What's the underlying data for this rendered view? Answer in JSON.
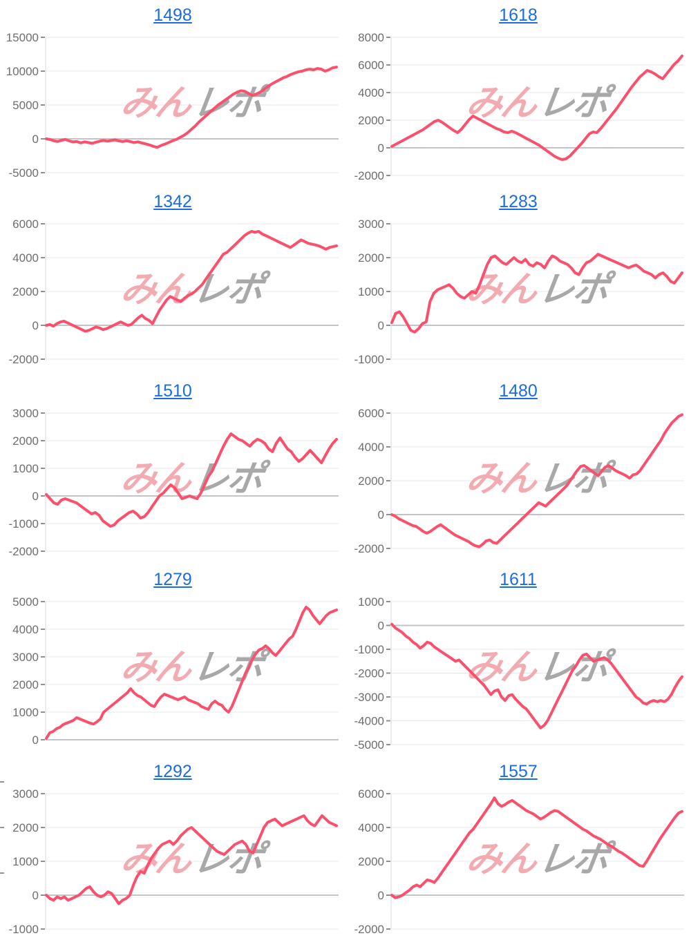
{
  "page": {
    "background": "#ffffff"
  },
  "watermark": {
    "pink_text": "みん",
    "gray_text": "レポ",
    "pink_color": "#f1abb1",
    "gray_color": "#a8a8a8"
  },
  "style": {
    "line_color": "#fa506c",
    "grid_color": "#e8e8e8",
    "zero_line_color": "#c4c4c4",
    "tick_color": "#8f8f8f",
    "axis_label_color": "#6e6e6e",
    "axis_border_color": "#d9d9d9",
    "title_color": "#1b6ce2"
  },
  "left_edge_ticks_y": [
    1131,
    1197,
    1263
  ],
  "chart_data": [
    {
      "type": "line",
      "title": "1498",
      "ylabel": "",
      "xlabel": "",
      "grid": true,
      "y_ticks": [
        15000,
        10000,
        5000,
        0,
        -5000
      ],
      "ylim": [
        -5000,
        15000
      ],
      "values": [
        0,
        -100,
        -300,
        -400,
        -200,
        -100,
        -300,
        -450,
        -400,
        -600,
        -450,
        -550,
        -650,
        -500,
        -350,
        -250,
        -350,
        -250,
        -150,
        -300,
        -400,
        -300,
        -400,
        -550,
        -450,
        -600,
        -750,
        -900,
        -1100,
        -1250,
        -1000,
        -800,
        -550,
        -300,
        -100,
        200,
        500,
        900,
        1400,
        1900,
        2500,
        3000,
        3500,
        4000,
        4500,
        5000,
        5400,
        5800,
        6200,
        6600,
        6900,
        7100,
        7000,
        6700,
        6400,
        6600,
        6900,
        7300,
        7700,
        8100,
        8400,
        8700,
        9000,
        9200,
        9500,
        9700,
        9900,
        10000,
        10200,
        10300,
        10200,
        10400,
        10300,
        10000,
        10200,
        10500,
        10600
      ]
    },
    {
      "type": "line",
      "title": "1618",
      "ylabel": "",
      "xlabel": "",
      "grid": true,
      "y_ticks": [
        8000,
        6000,
        4000,
        2000,
        0,
        -2000
      ],
      "ylim": [
        -2000,
        8000
      ],
      "values": [
        100,
        250,
        400,
        550,
        700,
        850,
        1000,
        1150,
        1300,
        1500,
        1700,
        1900,
        2000,
        1850,
        1650,
        1450,
        1250,
        1100,
        1350,
        1700,
        2050,
        2300,
        2150,
        2000,
        1850,
        1700,
        1550,
        1400,
        1300,
        1150,
        1100,
        1200,
        1100,
        950,
        800,
        650,
        500,
        350,
        200,
        0,
        -200,
        -400,
        -600,
        -750,
        -850,
        -800,
        -600,
        -300,
        0,
        300,
        650,
        1000,
        1150,
        1100,
        1400,
        1750,
        2100,
        2450,
        2800,
        3200,
        3600,
        4000,
        4400,
        4750,
        5100,
        5350,
        5600,
        5500,
        5350,
        5150,
        5000,
        5350,
        5700,
        6050,
        6300,
        6650
      ]
    },
    {
      "type": "line",
      "title": "1342",
      "ylabel": "",
      "xlabel": "",
      "grid": true,
      "y_ticks": [
        6000,
        4000,
        2000,
        0,
        -2000
      ],
      "ylim": [
        -2000,
        6000
      ],
      "values": [
        0,
        50,
        -50,
        100,
        200,
        250,
        150,
        50,
        -50,
        -150,
        -250,
        -350,
        -300,
        -200,
        -100,
        -150,
        -250,
        -200,
        -100,
        0,
        100,
        200,
        100,
        0,
        50,
        250,
        450,
        600,
        400,
        300,
        100,
        500,
        900,
        1200,
        1500,
        1700,
        1600,
        1500,
        1400,
        1600,
        1750,
        1850,
        2000,
        2200,
        2400,
        2700,
        3000,
        3300,
        3600,
        3900,
        4200,
        4300,
        4500,
        4700,
        4900,
        5100,
        5300,
        5450,
        5550,
        5500,
        5550,
        5400,
        5300,
        5200,
        5100,
        5000,
        4900,
        4800,
        4700,
        4600,
        4750,
        4900,
        5050,
        4950,
        4850,
        4800,
        4750,
        4700,
        4600,
        4500,
        4600,
        4650,
        4700
      ]
    },
    {
      "type": "line",
      "title": "1283",
      "ylabel": "",
      "xlabel": "",
      "grid": true,
      "y_ticks": [
        3000,
        2000,
        1000,
        0,
        -1000
      ],
      "ylim": [
        -1000,
        3000
      ],
      "values": [
        80,
        350,
        400,
        250,
        50,
        -150,
        -200,
        -100,
        50,
        100,
        700,
        950,
        1050,
        1100,
        1150,
        1200,
        1100,
        950,
        850,
        800,
        900,
        1000,
        950,
        1200,
        1500,
        1800,
        2000,
        2050,
        1950,
        1850,
        1800,
        1900,
        2000,
        1900,
        1850,
        1950,
        1800,
        1750,
        1850,
        1800,
        1700,
        1900,
        2050,
        2000,
        1900,
        1850,
        1800,
        1700,
        1550,
        1500,
        1700,
        1850,
        1900,
        2000,
        2100,
        2050,
        2000,
        1950,
        1900,
        1850,
        1800,
        1750,
        1700,
        1750,
        1780,
        1700,
        1600,
        1550,
        1500,
        1400,
        1500,
        1550,
        1450,
        1300,
        1250,
        1400,
        1550
      ]
    },
    {
      "type": "line",
      "title": "1510",
      "ylabel": "",
      "xlabel": "",
      "grid": true,
      "y_ticks": [
        3000,
        2000,
        1000,
        0,
        -1000,
        -2000
      ],
      "ylim": [
        -2000,
        3000
      ],
      "values": [
        50,
        -100,
        -250,
        -300,
        -150,
        -100,
        -150,
        -200,
        -250,
        -350,
        -450,
        -550,
        -650,
        -600,
        -700,
        -900,
        -1000,
        -1100,
        -1050,
        -900,
        -800,
        -700,
        -600,
        -550,
        -650,
        -800,
        -750,
        -600,
        -400,
        -200,
        0,
        100,
        250,
        400,
        300,
        100,
        -100,
        -50,
        0,
        -50,
        -100,
        100,
        400,
        700,
        900,
        1200,
        1500,
        1800,
        2050,
        2250,
        2150,
        2050,
        2000,
        1900,
        1800,
        1950,
        2050,
        2000,
        1900,
        1700,
        1600,
        1900,
        2100,
        1900,
        1700,
        1600,
        1400,
        1250,
        1350,
        1500,
        1650,
        1500,
        1350,
        1200,
        1450,
        1700,
        1900,
        2050
      ]
    },
    {
      "type": "line",
      "title": "1480",
      "ylabel": "",
      "xlabel": "",
      "grid": true,
      "y_ticks": [
        6000,
        4000,
        2000,
        0,
        -2000
      ],
      "ylim": [
        -2000,
        6000
      ],
      "values": [
        0,
        -100,
        -250,
        -350,
        -450,
        -550,
        -650,
        -700,
        -850,
        -1000,
        -1100,
        -1000,
        -850,
        -700,
        -600,
        -750,
        -900,
        -1050,
        -1200,
        -1300,
        -1400,
        -1500,
        -1600,
        -1750,
        -1850,
        -1900,
        -1750,
        -1550,
        -1500,
        -1650,
        -1700,
        -1500,
        -1300,
        -1100,
        -900,
        -700,
        -500,
        -300,
        -100,
        100,
        300,
        500,
        700,
        600,
        500,
        700,
        900,
        1100,
        1300,
        1500,
        1700,
        2000,
        2300,
        2600,
        2850,
        2900,
        2750,
        2600,
        2450,
        2300,
        2550,
        2800,
        2900,
        2750,
        2600,
        2500,
        2400,
        2300,
        2150,
        2350,
        2400,
        2600,
        2900,
        3200,
        3500,
        3800,
        4100,
        4400,
        4800,
        5100,
        5400,
        5600,
        5800,
        5900
      ]
    },
    {
      "type": "line",
      "title": "1279",
      "ylabel": "",
      "xlabel": "",
      "grid": true,
      "y_ticks": [
        5000,
        4000,
        3000,
        2000,
        1000,
        0
      ],
      "ylim": [
        0,
        5000
      ],
      "values": [
        50,
        250,
        300,
        400,
        450,
        550,
        600,
        650,
        700,
        800,
        750,
        700,
        650,
        600,
        570,
        650,
        750,
        1000,
        1100,
        1200,
        1300,
        1400,
        1500,
        1600,
        1700,
        1850,
        1700,
        1600,
        1550,
        1450,
        1350,
        1250,
        1200,
        1400,
        1550,
        1650,
        1600,
        1550,
        1500,
        1450,
        1500,
        1550,
        1450,
        1400,
        1350,
        1300,
        1200,
        1150,
        1100,
        1300,
        1400,
        1300,
        1250,
        1100,
        1000,
        1200,
        1500,
        1800,
        2100,
        2400,
        2600,
        2900,
        3100,
        3250,
        3300,
        3400,
        3300,
        3150,
        3050,
        3200,
        3350,
        3500,
        3650,
        3750,
        4000,
        4300,
        4600,
        4800,
        4700,
        4500,
        4350,
        4200,
        4350,
        4500,
        4600,
        4650,
        4700
      ]
    },
    {
      "type": "line",
      "title": "1611",
      "ylabel": "",
      "xlabel": "",
      "grid": true,
      "y_ticks": [
        1000,
        0,
        -1000,
        -2000,
        -3000,
        -4000,
        -5000
      ],
      "ylim": [
        -5000,
        1000
      ],
      "values": [
        50,
        -100,
        -200,
        -300,
        -450,
        -550,
        -700,
        -800,
        -950,
        -850,
        -700,
        -750,
        -900,
        -1000,
        -1100,
        -1200,
        -1300,
        -1400,
        -1500,
        -1450,
        -1600,
        -1750,
        -1900,
        -2050,
        -2200,
        -2350,
        -2500,
        -2700,
        -2900,
        -2750,
        -2700,
        -3000,
        -3150,
        -2950,
        -2900,
        -3100,
        -3250,
        -3400,
        -3500,
        -3700,
        -3900,
        -4100,
        -4300,
        -4200,
        -4000,
        -3700,
        -3400,
        -3100,
        -2800,
        -2500,
        -2200,
        -1900,
        -1700,
        -1450,
        -1250,
        -1200,
        -1350,
        -1500,
        -1450,
        -1400,
        -1350,
        -1450,
        -1600,
        -1800,
        -2000,
        -2200,
        -2400,
        -2600,
        -2800,
        -3000,
        -3100,
        -3250,
        -3300,
        -3200,
        -3150,
        -3200,
        -3150,
        -3200,
        -3100,
        -2900,
        -2600,
        -2350,
        -2150
      ]
    },
    {
      "type": "line",
      "title": "1292",
      "ylabel": "",
      "xlabel": "",
      "grid": true,
      "y_ticks": [
        3000,
        2000,
        1000,
        0,
        -1000
      ],
      "ylim": [
        -1000,
        3000
      ],
      "values": [
        0,
        -100,
        -150,
        -50,
        -100,
        -50,
        -150,
        -100,
        -50,
        0,
        100,
        200,
        250,
        100,
        0,
        -50,
        0,
        100,
        50,
        -100,
        -250,
        -150,
        -100,
        0,
        300,
        550,
        700,
        650,
        900,
        1100,
        1250,
        1400,
        1500,
        1550,
        1600,
        1500,
        1600,
        1750,
        1850,
        1950,
        2000,
        1900,
        1800,
        1700,
        1600,
        1500,
        1400,
        1300,
        1250,
        1200,
        1300,
        1400,
        1500,
        1550,
        1600,
        1500,
        1300,
        1250,
        1500,
        1750,
        2000,
        2150,
        2200,
        2250,
        2150,
        2050,
        2100,
        2150,
        2200,
        2250,
        2300,
        2350,
        2200,
        2100,
        2050,
        2200,
        2350,
        2250,
        2150,
        2100,
        2050
      ]
    },
    {
      "type": "line",
      "title": "1557",
      "ylabel": "",
      "xlabel": "",
      "grid": true,
      "y_ticks": [
        6000,
        4000,
        2000,
        0,
        -2000
      ],
      "ylim": [
        -2000,
        6000
      ],
      "values": [
        0,
        -150,
        -100,
        0,
        150,
        300,
        500,
        600,
        500,
        700,
        900,
        850,
        750,
        1000,
        1300,
        1600,
        1900,
        2200,
        2500,
        2800,
        3100,
        3400,
        3700,
        3900,
        4200,
        4500,
        4800,
        5100,
        5400,
        5750,
        5400,
        5250,
        5350,
        5500,
        5600,
        5450,
        5300,
        5150,
        5000,
        4900,
        4800,
        4650,
        4500,
        4600,
        4750,
        4900,
        5000,
        4950,
        4800,
        4650,
        4500,
        4350,
        4200,
        4050,
        3900,
        3800,
        3650,
        3500,
        3400,
        3300,
        3150,
        3000,
        2900,
        2750,
        2600,
        2500,
        2350,
        2200,
        2050,
        1900,
        1750,
        1700,
        2000,
        2350,
        2700,
        3050,
        3400,
        3700,
        4000,
        4300,
        4600,
        4850,
        4950
      ]
    }
  ]
}
